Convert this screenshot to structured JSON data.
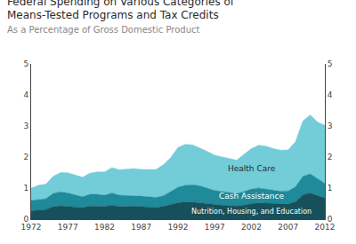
{
  "chart_data": {
    "type": "area",
    "stacked": true,
    "title": "Federal Spending on Various Categories of Means-Tested Programs and Tax Credits",
    "subtitle": "As a Percentage of Gross Domestic Product",
    "x": [
      1972,
      1973,
      1974,
      1975,
      1976,
      1977,
      1978,
      1979,
      1980,
      1981,
      1982,
      1983,
      1984,
      1985,
      1986,
      1987,
      1988,
      1989,
      1990,
      1991,
      1992,
      1993,
      1994,
      1995,
      1996,
      1997,
      1998,
      1999,
      2000,
      2001,
      2002,
      2003,
      2004,
      2005,
      2006,
      2007,
      2008,
      2009,
      2010,
      2011,
      2012
    ],
    "series": [
      {
        "name": "Nutrition, Housing, and Education",
        "color": "#17505a",
        "values": [
          0.27,
          0.3,
          0.31,
          0.4,
          0.43,
          0.41,
          0.39,
          0.37,
          0.42,
          0.42,
          0.41,
          0.45,
          0.41,
          0.41,
          0.42,
          0.4,
          0.39,
          0.38,
          0.41,
          0.47,
          0.53,
          0.55,
          0.55,
          0.52,
          0.49,
          0.46,
          0.45,
          0.44,
          0.42,
          0.45,
          0.5,
          0.52,
          0.51,
          0.49,
          0.48,
          0.49,
          0.56,
          0.78,
          0.84,
          0.76,
          0.68
        ]
      },
      {
        "name": "Cash Assistance",
        "color": "#1e8a9a",
        "values": [
          0.33,
          0.34,
          0.35,
          0.43,
          0.45,
          0.43,
          0.38,
          0.35,
          0.38,
          0.38,
          0.36,
          0.39,
          0.36,
          0.35,
          0.35,
          0.34,
          0.33,
          0.32,
          0.34,
          0.41,
          0.5,
          0.54,
          0.56,
          0.55,
          0.51,
          0.46,
          0.44,
          0.42,
          0.4,
          0.44,
          0.47,
          0.48,
          0.46,
          0.44,
          0.42,
          0.42,
          0.48,
          0.6,
          0.62,
          0.55,
          0.47
        ]
      },
      {
        "name": "Health Care",
        "color": "#72cdd8",
        "values": [
          0.4,
          0.45,
          0.47,
          0.55,
          0.62,
          0.65,
          0.65,
          0.63,
          0.68,
          0.72,
          0.75,
          0.82,
          0.82,
          0.84,
          0.86,
          0.86,
          0.88,
          0.9,
          1.0,
          1.1,
          1.28,
          1.32,
          1.28,
          1.22,
          1.18,
          1.14,
          1.12,
          1.1,
          1.08,
          1.2,
          1.3,
          1.38,
          1.38,
          1.34,
          1.32,
          1.32,
          1.45,
          1.78,
          1.9,
          1.82,
          1.87
        ]
      }
    ],
    "xlim": [
      1972,
      2012
    ],
    "xticks": [
      1972,
      1977,
      1982,
      1987,
      1992,
      1997,
      2002,
      2007,
      2012
    ],
    "ylim": [
      0,
      5
    ],
    "yticks": [
      0,
      1,
      2,
      3,
      4,
      5
    ],
    "y2lim": [
      0,
      5
    ],
    "y2ticks": [
      0,
      1,
      2,
      3,
      4,
      5
    ],
    "grid": false
  }
}
